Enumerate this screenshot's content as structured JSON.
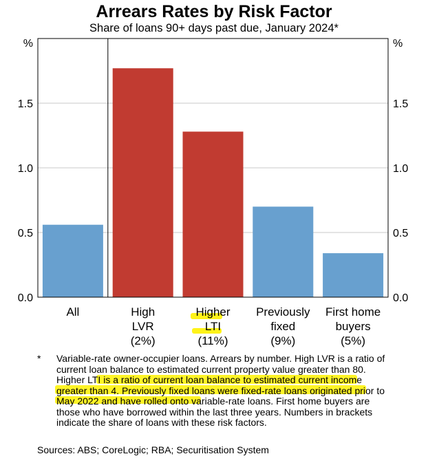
{
  "chart_data": {
    "type": "bar",
    "title": "Arrears Rates by Risk Factor",
    "subtitle": "Share of loans 90+ days past due, January 2024*",
    "y_unit_label": "%",
    "ylim": [
      0,
      2.0
    ],
    "yticks": [
      "0.0",
      "0.5",
      "1.0",
      "1.5"
    ],
    "grid": true,
    "categories": [
      {
        "lines": [
          "All"
        ]
      },
      {
        "lines": [
          "High",
          "LVR",
          "(2%)"
        ]
      },
      {
        "lines": [
          "Higher",
          "LTI",
          "(11%)"
        ]
      },
      {
        "lines": [
          "Previously",
          "fixed",
          "(9%)"
        ]
      },
      {
        "lines": [
          "First home",
          "buyers",
          "(5%)"
        ]
      }
    ],
    "values": [
      0.56,
      1.77,
      1.28,
      0.7,
      0.34
    ],
    "colors": [
      "#68a0cf",
      "#c13b31",
      "#c13b31",
      "#68a0cf",
      "#68a0cf"
    ]
  },
  "footnote": {
    "marker": "*",
    "text": "Variable-rate owner-occupier loans. Arrears by number. High LVR is a ratio of current loan balance to estimated current property value greater than 80. Higher LTI is a ratio of current loan balance to estimated current income greater than 4. Previously fixed loans were fixed-rate loans originated prior to May 2022 and have rolled onto variable-rate loans. First home buyers are those who have borrowed within the last three years. Numbers in brackets indicate the share of loans with these risk factors."
  },
  "sources": "Sources:  ABS; CoreLogic; RBA; Securitisation System",
  "colors": {
    "highlight": "#fff200",
    "grid": "#c8c8c8",
    "frame": "#000000"
  }
}
